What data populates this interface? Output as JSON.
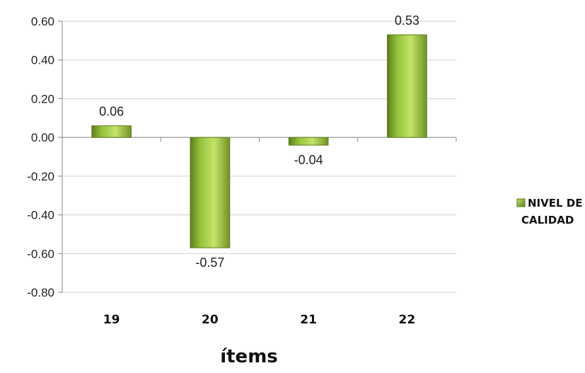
{
  "chart_data": {
    "type": "bar",
    "categories": [
      "19",
      "20",
      "21",
      "22"
    ],
    "series": [
      {
        "name": "NIVEL DE CALIDAD",
        "values": [
          0.06,
          -0.57,
          -0.04,
          0.53
        ]
      }
    ],
    "data_labels": [
      "0.06",
      "-0.57",
      "-0.04",
      "0.53"
    ],
    "y_ticks": [
      "0.60",
      "0.40",
      "0.20",
      "0.00",
      "-0.20",
      "-0.40",
      "-0.60",
      "-0.80"
    ],
    "ylim": [
      -0.8,
      0.6
    ],
    "xlabel": "ítems",
    "ylabel": "",
    "legend": {
      "lines": [
        "NIVEL DE",
        "CALIDAD"
      ],
      "position": "right"
    },
    "grid": true,
    "colors": {
      "bar_light": "#c4e36a",
      "bar_mid": "#94c23a",
      "bar_dark": "#5e7d1c",
      "gridline": "#d0d0d0",
      "axis": "#888888"
    }
  }
}
